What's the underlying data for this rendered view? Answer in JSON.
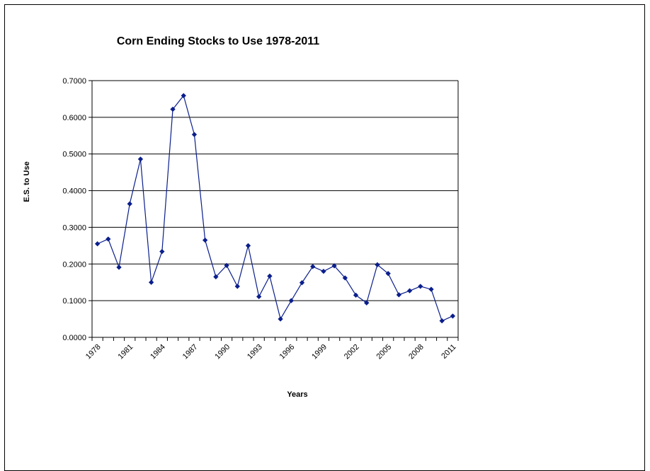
{
  "chart_data": {
    "type": "line",
    "title": "Corn Ending Stocks to Use 1978-2011",
    "xlabel": "Years",
    "ylabel": "E.S. to Use",
    "ylim": [
      0,
      0.7
    ],
    "yticks": [
      "0.0000",
      "0.1000",
      "0.2000",
      "0.3000",
      "0.4000",
      "0.5000",
      "0.6000",
      "0.7000"
    ],
    "xticks": [
      "1978",
      "1981",
      "1984",
      "1987",
      "1990",
      "1993",
      "1996",
      "1999",
      "2002",
      "2005",
      "2008",
      "2011"
    ],
    "grid": "horizontal",
    "legend": "none",
    "series": [
      {
        "color": "#0A1E8C",
        "marker": "diamond",
        "x": [
          1978,
          1979,
          1980,
          1981,
          1982,
          1983,
          1984,
          1985,
          1986,
          1987,
          1988,
          1989,
          1990,
          1991,
          1992,
          1993,
          1994,
          1995,
          1996,
          1997,
          1998,
          1999,
          2000,
          2001,
          2002,
          2003,
          2004,
          2005,
          2006,
          2007,
          2008,
          2009,
          2010,
          2011
        ],
        "values": [
          0.255,
          0.268,
          0.191,
          0.364,
          0.486,
          0.15,
          0.234,
          0.622,
          0.659,
          0.553,
          0.265,
          0.165,
          0.196,
          0.139,
          0.25,
          0.111,
          0.167,
          0.05,
          0.1,
          0.149,
          0.193,
          0.18,
          0.195,
          0.162,
          0.115,
          0.094,
          0.198,
          0.174,
          0.116,
          0.127,
          0.139,
          0.131,
          0.045,
          0.058
        ]
      }
    ]
  }
}
